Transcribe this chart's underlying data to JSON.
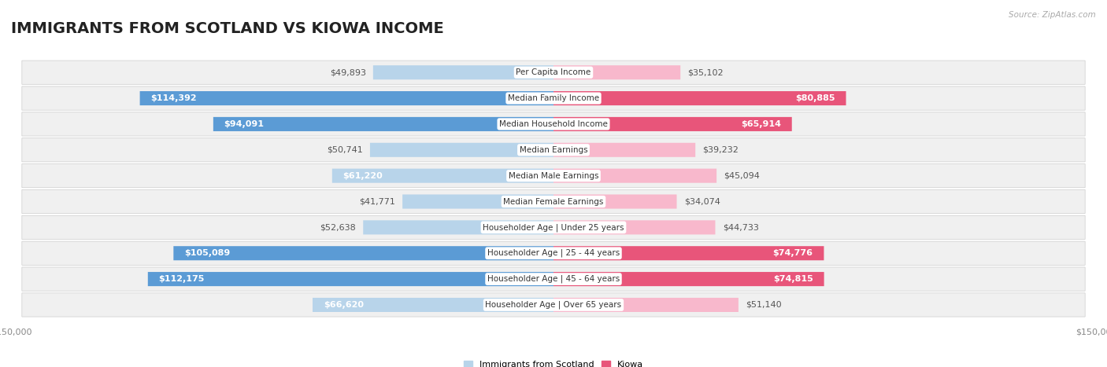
{
  "title": "IMMIGRANTS FROM SCOTLAND VS KIOWA INCOME",
  "source": "Source: ZipAtlas.com",
  "categories": [
    "Per Capita Income",
    "Median Family Income",
    "Median Household Income",
    "Median Earnings",
    "Median Male Earnings",
    "Median Female Earnings",
    "Householder Age | Under 25 years",
    "Householder Age | 25 - 44 years",
    "Householder Age | 45 - 64 years",
    "Householder Age | Over 65 years"
  ],
  "scotland_values": [
    49893,
    114392,
    94091,
    50741,
    61220,
    41771,
    52638,
    105089,
    112175,
    66620
  ],
  "kiowa_values": [
    35102,
    80885,
    65914,
    39232,
    45094,
    34074,
    44733,
    74776,
    74815,
    51140
  ],
  "scotland_color_light": "#b8d4ea",
  "scotland_color_dark": "#5b9bd5",
  "kiowa_color_light": "#f8b8cc",
  "kiowa_color_dark": "#e8557a",
  "background_color": "#ffffff",
  "row_bg_color": "#f0f0f0",
  "max_value": 150000,
  "legend_scotland": "Immigrants from Scotland",
  "legend_kiowa": "Kiowa",
  "title_fontsize": 14,
  "source_fontsize": 7.5,
  "value_fontsize": 8,
  "category_fontsize": 7.5,
  "axis_fontsize": 8,
  "bar_height": 0.55,
  "inner_label_threshold": 60000
}
